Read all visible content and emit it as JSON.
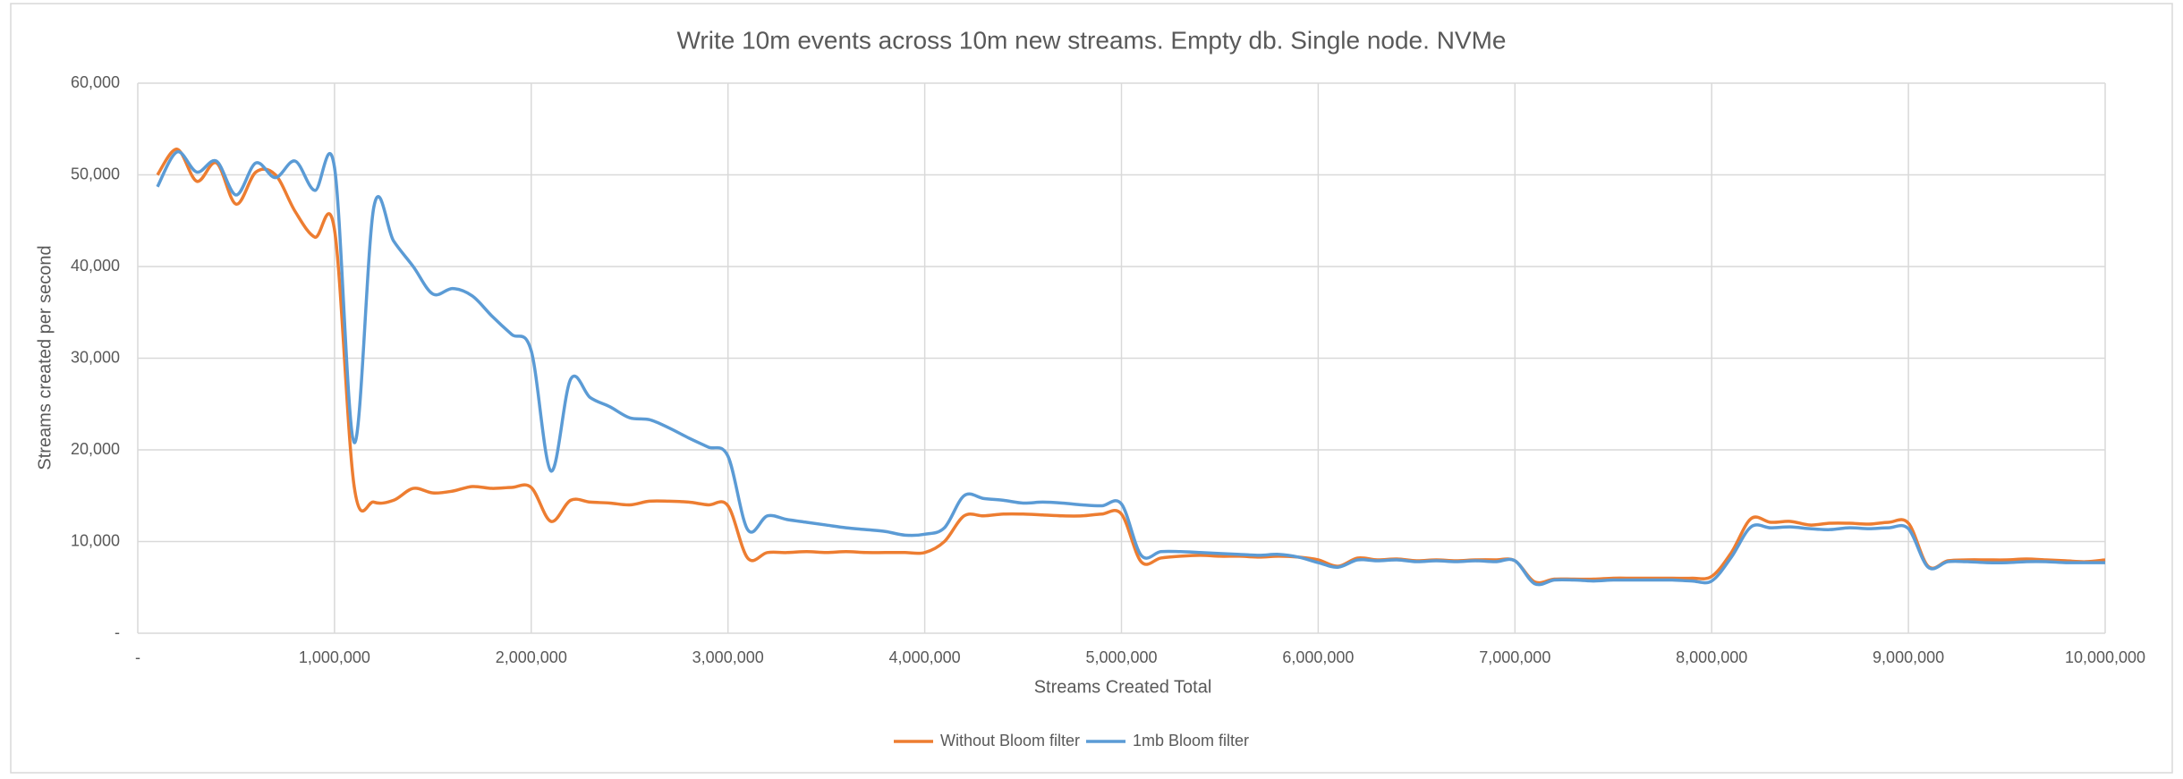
{
  "chart_data": {
    "type": "line",
    "title": "Write 10m events across 10m new streams. Empty db. Single node. NVMe",
    "x_label": "Streams Created Total",
    "y_label": "Streams created per second",
    "x": [
      100000,
      200000,
      300000,
      400000,
      500000,
      600000,
      700000,
      800000,
      900000,
      1000000,
      1100000,
      1200000,
      1300000,
      1400000,
      1500000,
      1600000,
      1700000,
      1800000,
      1900000,
      2000000,
      2100000,
      2200000,
      2300000,
      2400000,
      2500000,
      2600000,
      2700000,
      2800000,
      2900000,
      3000000,
      3100000,
      3200000,
      3300000,
      3400000,
      3500000,
      3600000,
      3700000,
      3800000,
      3900000,
      4000000,
      4100000,
      4200000,
      4300000,
      4400000,
      4500000,
      4600000,
      4700000,
      4800000,
      4900000,
      5000000,
      5100000,
      5200000,
      5300000,
      5400000,
      5500000,
      5600000,
      5700000,
      5800000,
      5900000,
      6000000,
      6100000,
      6200000,
      6300000,
      6400000,
      6500000,
      6600000,
      6700000,
      6800000,
      6900000,
      7000000,
      7100000,
      7200000,
      7300000,
      7400000,
      7500000,
      7600000,
      7700000,
      7800000,
      7900000,
      8000000,
      8100000,
      8200000,
      8300000,
      8400000,
      8500000,
      8600000,
      8700000,
      8800000,
      8900000,
      9000000,
      9100000,
      9200000,
      9300000,
      9400000,
      9500000,
      9600000,
      9700000,
      9800000,
      9900000,
      10000000
    ],
    "series": [
      {
        "name": "Without Bloom filter",
        "color": "#ed7d31",
        "values": [
          50000,
          52800,
          49300,
          51300,
          46800,
          50300,
          50000,
          46000,
          43200,
          44000,
          16000,
          14300,
          14500,
          15800,
          15300,
          15500,
          16000,
          15800,
          15900,
          15900,
          12200,
          14500,
          14300,
          14200,
          14000,
          14400,
          14400,
          14300,
          14000,
          13900,
          8200,
          8800,
          8800,
          8900,
          8800,
          8900,
          8800,
          8800,
          8800,
          8800,
          10000,
          12800,
          12800,
          13000,
          13000,
          12900,
          12800,
          12800,
          13000,
          13000,
          7800,
          8200,
          8400,
          8500,
          8400,
          8400,
          8300,
          8400,
          8300,
          8000,
          7300,
          8200,
          8000,
          8100,
          7900,
          8000,
          7900,
          8000,
          8000,
          7900,
          5600,
          5900,
          5900,
          5900,
          6000,
          6000,
          6000,
          6000,
          6000,
          6200,
          8800,
          12500,
          12100,
          12200,
          11800,
          12000,
          12000,
          11900,
          12100,
          12000,
          7300,
          7900,
          8000,
          8000,
          8000,
          8100,
          8000,
          7900,
          7800,
          8000
        ]
      },
      {
        "name": "1mb Bloom filter",
        "color": "#5b9bd5",
        "values": [
          48700,
          52500,
          50300,
          51500,
          47800,
          51300,
          49700,
          51500,
          48300,
          50800,
          20800,
          46500,
          42800,
          40000,
          37000,
          37600,
          36800,
          34600,
          32600,
          30800,
          17700,
          27700,
          25700,
          24700,
          23500,
          23300,
          22400,
          21300,
          20300,
          19300,
          11300,
          12800,
          12400,
          12100,
          11800,
          11500,
          11300,
          11100,
          10700,
          10800,
          11500,
          15000,
          14700,
          14500,
          14200,
          14300,
          14200,
          14000,
          13900,
          14100,
          8500,
          8900,
          8900,
          8800,
          8700,
          8600,
          8500,
          8600,
          8300,
          7700,
          7200,
          8000,
          7900,
          8000,
          7800,
          7900,
          7800,
          7900,
          7800,
          7900,
          5400,
          5800,
          5800,
          5700,
          5800,
          5800,
          5800,
          5800,
          5700,
          5700,
          8300,
          11600,
          11500,
          11600,
          11400,
          11300,
          11500,
          11400,
          11500,
          11400,
          7200,
          7800,
          7800,
          7700,
          7700,
          7800,
          7800,
          7700,
          7700,
          7700
        ]
      }
    ],
    "xlim": [
      0,
      10000000
    ],
    "xticks": [
      {
        "value": 0,
        "label": "-"
      },
      {
        "value": 1000000,
        "label": "1,000,000"
      },
      {
        "value": 2000000,
        "label": "2,000,000"
      },
      {
        "value": 3000000,
        "label": "3,000,000"
      },
      {
        "value": 4000000,
        "label": "4,000,000"
      },
      {
        "value": 5000000,
        "label": "5,000,000"
      },
      {
        "value": 6000000,
        "label": "6,000,000"
      },
      {
        "value": 7000000,
        "label": "7,000,000"
      },
      {
        "value": 8000000,
        "label": "8,000,000"
      },
      {
        "value": 9000000,
        "label": "9,000,000"
      },
      {
        "value": 10000000,
        "label": "10,000,000"
      }
    ],
    "ylim": [
      0,
      60000
    ],
    "yticks": [
      {
        "value": 0,
        "label": "-"
      },
      {
        "value": 10000,
        "label": "10,000"
      },
      {
        "value": 20000,
        "label": "20,000"
      },
      {
        "value": 30000,
        "label": "30,000"
      },
      {
        "value": 40000,
        "label": "40,000"
      },
      {
        "value": 50000,
        "label": "50,000"
      },
      {
        "value": 60000,
        "label": "60,000"
      }
    ],
    "grid": true,
    "legend": "bottom"
  }
}
